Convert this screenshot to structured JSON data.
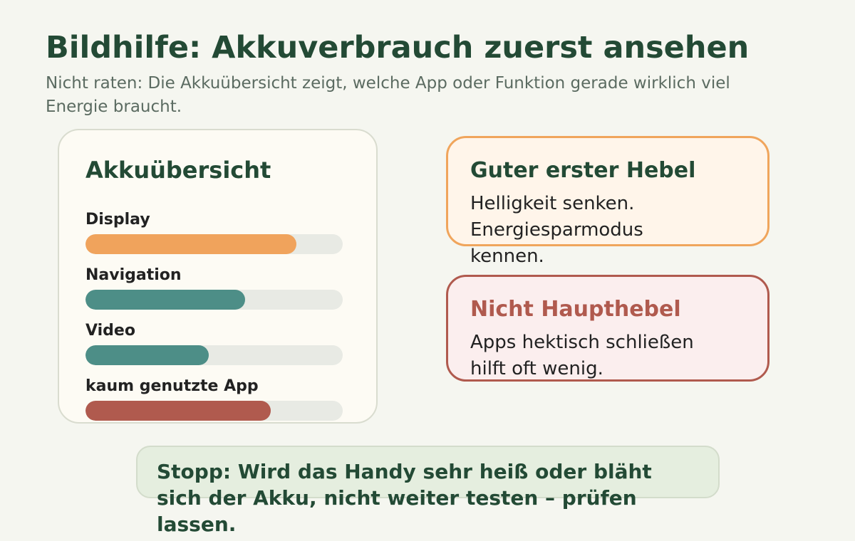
{
  "header": {
    "title": "Bildhilfe: Akkuverbrauch zuerst ansehen",
    "subtitle": "Nicht raten: Die Akkuübersicht zeigt, welche App oder Funktion gerade wirklich viel Energie braucht."
  },
  "overview": {
    "title": "Akkuübersicht",
    "items": [
      {
        "label": "Display",
        "value": 82,
        "color": "#f0a35c"
      },
      {
        "label": "Navigation",
        "value": 62,
        "color": "#4d8e87"
      },
      {
        "label": "Video",
        "value": 48,
        "color": "#4d8e87"
      },
      {
        "label": "kaum genutzte App",
        "value": 72,
        "color": "#b05a4e"
      }
    ]
  },
  "cards": [
    {
      "title": "Guter erster Hebel",
      "text": "Helligkeit senken. Energiesparmodus kennen."
    },
    {
      "title": "Nicht Haupthebel",
      "text": "Apps hektisch schließen hilft oft wenig."
    }
  ],
  "stop": "Stopp: Wird das Handy sehr heiß oder bläht sich der Akku, nicht weiter testen – prüfen lassen."
}
